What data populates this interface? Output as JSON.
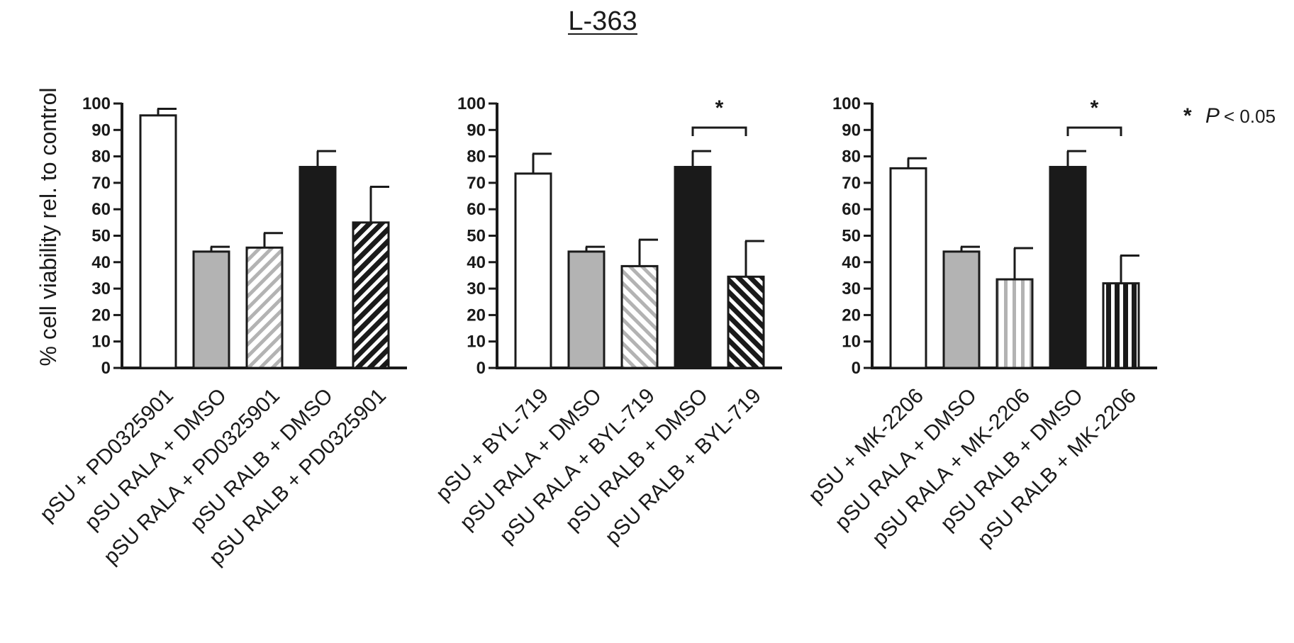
{
  "figure": {
    "title": "L-363",
    "ylabel": "% cell viability rel. to control",
    "legend": {
      "symbol": "*",
      "p_label": "P",
      "text": "< 0.05"
    }
  },
  "chart_data": [
    {
      "type": "bar",
      "title": "",
      "xlabel": "",
      "ylabel": "% cell viability rel. to control",
      "ylim": [
        0,
        100
      ],
      "yticks": [
        0,
        10,
        20,
        30,
        40,
        50,
        60,
        70,
        80,
        90,
        100
      ],
      "categories": [
        "pSU + PD0325901",
        "pSU RALA + DMSO",
        "pSU RALA + PD0325901",
        "pSU RALB + DMSO",
        "pSU RALB + PD0325901"
      ],
      "values": [
        95.5,
        44,
        45.5,
        76,
        55
      ],
      "errors": [
        2.5,
        1.8,
        5.5,
        6,
        13.5
      ],
      "fills": [
        "white",
        "gray",
        "hatch-gray-diag",
        "black",
        "hatch-black-diag"
      ],
      "significance": []
    },
    {
      "type": "bar",
      "title": "",
      "xlabel": "",
      "ylabel": "",
      "ylim": [
        0,
        100
      ],
      "yticks": [
        0,
        10,
        20,
        30,
        40,
        50,
        60,
        70,
        80,
        90,
        100
      ],
      "categories": [
        "pSU + BYL-719",
        "pSU RALA + DMSO",
        "pSU RALA + BYL-719",
        "pSU RALB + DMSO",
        "pSU RALB + BYL-719"
      ],
      "values": [
        73.5,
        44,
        38.5,
        76,
        34.5
      ],
      "errors": [
        7.5,
        1.8,
        10,
        6,
        13.5
      ],
      "fills": [
        "white",
        "gray",
        "hatch-gray-anti",
        "black",
        "hatch-black-anti"
      ],
      "significance": [
        {
          "from": 3,
          "to": 4,
          "label": "*"
        }
      ]
    },
    {
      "type": "bar",
      "title": "",
      "xlabel": "",
      "ylabel": "",
      "ylim": [
        0,
        100
      ],
      "yticks": [
        0,
        10,
        20,
        30,
        40,
        50,
        60,
        70,
        80,
        90,
        100
      ],
      "categories": [
        "pSU + MK-2206",
        "pSU RALA + DMSO",
        "pSU RALA + MK-2206",
        "pSU RALB + DMSO",
        "pSU RALB + MK-2206"
      ],
      "values": [
        75.5,
        44,
        33.5,
        76,
        32
      ],
      "errors": [
        3.8,
        1.8,
        11.8,
        6,
        10.5
      ],
      "fills": [
        "white",
        "gray",
        "hatch-gray-vert",
        "black",
        "hatch-black-vert"
      ],
      "significance": [
        {
          "from": 3,
          "to": 4,
          "label": "*"
        }
      ]
    }
  ]
}
